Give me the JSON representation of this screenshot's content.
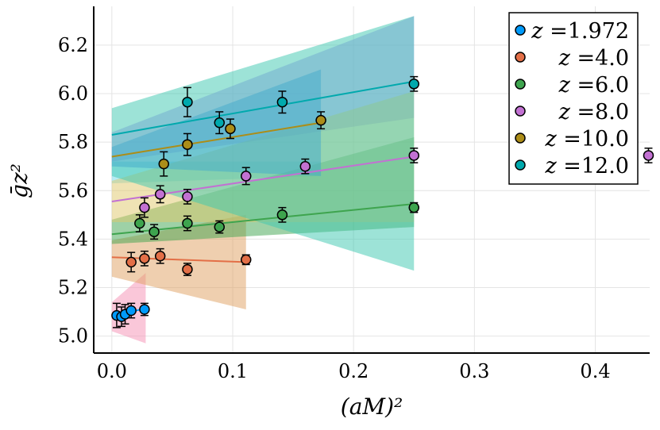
{
  "chart_data": {
    "type": "scatter",
    "title": "",
    "xlabel": "(aM)²",
    "ylabel": "ḡz²",
    "xlim": [
      -0.015,
      0.445
    ],
    "ylim": [
      4.93,
      6.36
    ],
    "xticks": [
      0.0,
      0.1,
      0.2,
      0.3,
      0.4
    ],
    "xtick_labels": [
      "0.0",
      "0.1",
      "0.2",
      "0.3",
      "0.4"
    ],
    "yticks": [
      5.0,
      5.2,
      5.4,
      5.6,
      5.8,
      6.0,
      6.2
    ],
    "ytick_labels": [
      "5.0",
      "5.2",
      "5.4",
      "5.6",
      "5.8",
      "6.0",
      "6.2"
    ],
    "grid": true,
    "legend_position": "top-right",
    "series": [
      {
        "name": "z =1.972",
        "z_label": "z",
        "value_label": "=1.972",
        "color": "#009AFA",
        "band_color": "#F590B4",
        "points": [
          [
            0.004,
            5.085,
            0.05
          ],
          [
            0.008,
            5.08,
            0.04
          ],
          [
            0.011,
            5.09,
            0.04
          ],
          [
            0.016,
            5.105,
            0.03
          ],
          [
            0.027,
            5.11,
            0.025
          ]
        ],
        "fit": {
          "x": [
            0.0,
            0.028
          ],
          "y": [
            5.08,
            5.115
          ]
        },
        "band": {
          "x": [
            0.0,
            0.028
          ],
          "low": [
            5.02,
            4.97
          ],
          "high": [
            5.14,
            5.26
          ]
        }
      },
      {
        "name": "z =4.0",
        "z_label": "z",
        "value_label": "=4.0",
        "color": "#E36F47",
        "band_color": "#E0A060",
        "points": [
          [
            0.016,
            5.305,
            0.04
          ],
          [
            0.027,
            5.32,
            0.03
          ],
          [
            0.04,
            5.33,
            0.03
          ],
          [
            0.0625,
            5.275,
            0.025
          ],
          [
            0.111,
            5.315,
            0.02
          ]
        ],
        "fit": {
          "x": [
            0.0,
            0.111
          ],
          "y": [
            5.325,
            5.305
          ]
        },
        "band": {
          "x": [
            0.0,
            0.111
          ],
          "low": [
            5.245,
            5.11
          ],
          "high": [
            5.395,
            5.5
          ]
        }
      },
      {
        "name": "z =6.0",
        "z_label": "z",
        "value_label": "=6.0",
        "color": "#3EA44E",
        "band_color": "#3EA44E",
        "points": [
          [
            0.023,
            5.465,
            0.035
          ],
          [
            0.035,
            5.43,
            0.03
          ],
          [
            0.0625,
            5.465,
            0.03
          ],
          [
            0.089,
            5.45,
            0.025
          ],
          [
            0.141,
            5.5,
            0.03
          ],
          [
            0.25,
            5.53,
            0.02
          ]
        ],
        "fit": {
          "x": [
            0.0,
            0.25
          ],
          "y": [
            5.42,
            5.545
          ]
        },
        "band": {
          "x": [
            0.0,
            0.25
          ],
          "low": [
            5.38,
            5.45
          ],
          "high": [
            5.48,
            5.82
          ]
        }
      },
      {
        "name": "z =8.0",
        "z_label": "z",
        "value_label": "=8.0",
        "color": "#C271D2",
        "band_color": "#E0C86A",
        "points": [
          [
            0.027,
            5.53,
            0.04
          ],
          [
            0.04,
            5.585,
            0.035
          ],
          [
            0.0625,
            5.575,
            0.03
          ],
          [
            0.111,
            5.66,
            0.035
          ],
          [
            0.16,
            5.7,
            0.03
          ],
          [
            0.25,
            5.745,
            0.03
          ],
          [
            0.444,
            5.745,
            0.03
          ]
        ],
        "fit": {
          "x": [
            0.0,
            0.25
          ],
          "y": [
            5.555,
            5.74
          ]
        },
        "band": {
          "x": [
            0.0,
            0.25
          ],
          "low": [
            5.47,
            5.47
          ],
          "high": [
            5.64,
            6.01
          ]
        }
      },
      {
        "name": "z =10.0",
        "z_label": "z",
        "value_label": "=10.0",
        "color": "#AC8D18",
        "band_color": "#4B8BE8",
        "points": [
          [
            0.043,
            5.71,
            0.05
          ],
          [
            0.0625,
            5.79,
            0.045
          ],
          [
            0.098,
            5.855,
            0.04
          ],
          [
            0.173,
            5.89,
            0.035
          ]
        ],
        "fit": {
          "x": [
            0.0,
            0.173
          ],
          "y": [
            5.74,
            5.88
          ]
        },
        "band": {
          "x": [
            0.0,
            0.173
          ],
          "low": [
            5.7,
            5.66
          ],
          "high": [
            5.78,
            6.1
          ]
        }
      },
      {
        "name": "z =12.0",
        "z_label": "z",
        "value_label": "=12.0",
        "color": "#00A9AD",
        "band_color": "#3CC8B0",
        "points": [
          [
            0.0625,
            5.965,
            0.06
          ],
          [
            0.089,
            5.88,
            0.045
          ],
          [
            0.141,
            5.965,
            0.045
          ],
          [
            0.25,
            6.04,
            0.03
          ]
        ],
        "fit": {
          "x": [
            0.0,
            0.25
          ],
          "y": [
            5.83,
            6.05
          ]
        },
        "band": {
          "x": [
            0.0,
            0.25
          ],
          "low": [
            5.66,
            5.27
          ],
          "high": [
            5.94,
            6.32
          ]
        }
      }
    ],
    "extra_bands": [
      {
        "x": [
          0.0,
          0.25
        ],
        "low": [
          5.72,
          5.9
        ],
        "high": [
          5.84,
          6.32
        ],
        "color": "#A78BF0"
      },
      {
        "x": [
          0.0,
          0.173
        ],
        "low": [
          5.63,
          5.66
        ],
        "high": [
          5.72,
          5.72
        ],
        "color": "#70D8E8"
      }
    ]
  }
}
